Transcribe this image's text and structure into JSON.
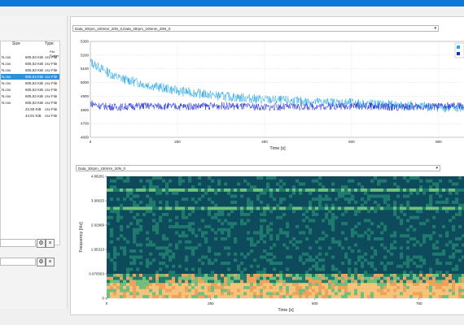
{
  "file_list": {
    "headers": [
      "Size",
      "Type"
    ],
    "subheader": "File Folder",
    "rows": [
      {
        "name": "N.csv",
        "size": "605,53 KiB",
        "type": "csv File"
      },
      {
        "name": "N.csv",
        "size": "605,53 KiB",
        "type": "csv File"
      },
      {
        "name": "N.csv",
        "size": "605,53 KiB",
        "type": "csv File"
      },
      {
        "name": "N.csv",
        "size": "605,53 KiB",
        "type": "csv File",
        "selected": true
      },
      {
        "name": "N.csv",
        "size": "605,53 KiB",
        "type": "csv File"
      },
      {
        "name": "N.csv",
        "size": "605,53 KiB",
        "type": "csv File"
      },
      {
        "name": "N.csv",
        "size": "605,53 KiB",
        "type": "csv File"
      },
      {
        "name": "N.csv",
        "size": "605,53 KiB",
        "type": "csv File"
      },
      {
        "name": "",
        "size": "22,50 KiB",
        "type": "csv File"
      },
      {
        "name": "",
        "size": "44,91 KiB",
        "type": "csv File"
      }
    ]
  },
  "controls": {
    "gear_icon": "gear-icon",
    "close_icon": "close-icon"
  },
  "plot_selector": {
    "value": "Data_30rpm_100mm_20N_0,Data_30rpm_100mm_20N_0"
  },
  "spectrogram_selector": {
    "value": "Data_30rpm_100mm_20N_0"
  },
  "toolbar": {
    "zoom_label": "%",
    "pan_icon": "triangle-icon"
  },
  "chart_data": [
    {
      "type": "line",
      "xlabel": "Time [s]",
      "xticks": [
        "0",
        "200",
        "400",
        "600",
        "800"
      ],
      "yticks": [
        "5300",
        "5200",
        "5100",
        "5000",
        "4900",
        "4800",
        "4700",
        "4600"
      ],
      "xlim": [
        0,
        860
      ],
      "ylim": [
        4600,
        5300
      ],
      "grid": true,
      "series": [
        {
          "color": "#29a8e4",
          "x": [
            0,
            20,
            60,
            120,
            200,
            300,
            400,
            500,
            600,
            700,
            800,
            860
          ],
          "y": [
            5150,
            5110,
            5040,
            4990,
            4940,
            4900,
            4875,
            4860,
            4850,
            4835,
            4820,
            4810
          ]
        },
        {
          "color": "#1f2bd0",
          "x": [
            0,
            20,
            60,
            120,
            200,
            300,
            400,
            500,
            600,
            700,
            800,
            860
          ],
          "y": [
            4850,
            4830,
            4820,
            4830,
            4825,
            4830,
            4820,
            4825,
            4830,
            4820,
            4825,
            4830
          ]
        }
      ]
    },
    {
      "type": "heatmap",
      "xlabel": "Time [s]",
      "ylabel": "Frequency [Hz]",
      "xticks": [
        "0",
        "250",
        "500",
        "750"
      ],
      "yticks": [
        "4.88281",
        "3.90625",
        "2.92969",
        "1.95313",
        "0.976563",
        "0"
      ],
      "xlim": [
        0,
        860
      ],
      "ylim": [
        0,
        4.88281
      ],
      "colors": [
        "#0c4a5c",
        "#1f7a6e",
        "#6fbf7e",
        "#f0a25a",
        "#f5c37a"
      ]
    }
  ]
}
